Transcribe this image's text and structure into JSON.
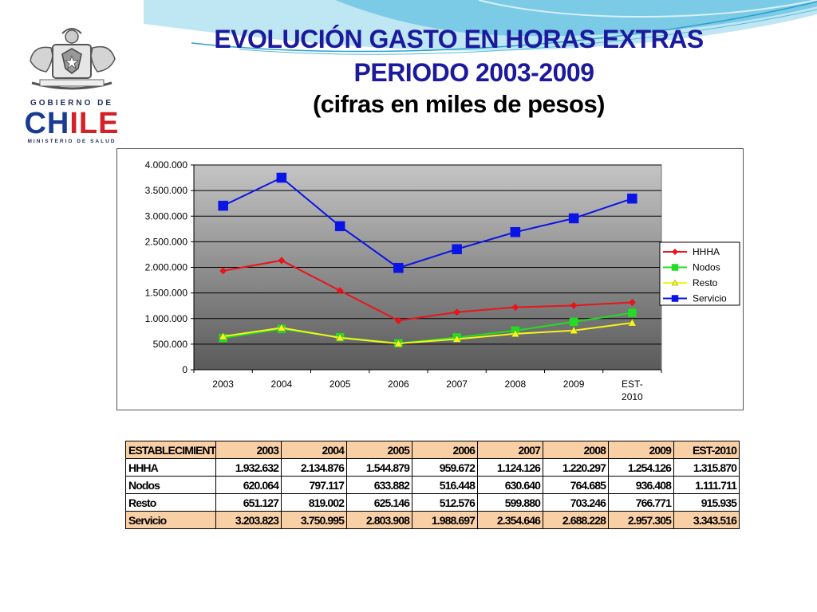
{
  "header": {
    "title_line1": "EVOLUCIÓN GASTO EN HORAS EXTRAS",
    "title_line2": "PERIODO 2003-2009",
    "title_line3": "(cifras en miles de pesos)"
  },
  "logo": {
    "top_text": "GOBIERNO DE",
    "chile_part1": "CH",
    "chile_part2": "ILE",
    "bottom_text": "MINISTERIO DE SALUD"
  },
  "chart_data": {
    "type": "line",
    "title": "",
    "xlabel": "",
    "ylabel": "",
    "categories": [
      "2003",
      "2004",
      "2005",
      "2006",
      "2007",
      "2008",
      "2009",
      "EST-2010"
    ],
    "ylim": [
      0,
      4000000
    ],
    "yticks": [
      0,
      500000,
      1000000,
      1500000,
      2000000,
      2500000,
      3000000,
      3500000,
      4000000
    ],
    "ytick_labels": [
      "0",
      "500.000",
      "1.000.000",
      "1.500.000",
      "2.000.000",
      "2.500.000",
      "3.000.000",
      "3.500.000",
      "4.000.000"
    ],
    "grid": true,
    "legend_position": "right",
    "series": [
      {
        "name": "HHHA",
        "color": "#e8141b",
        "marker": "diamond",
        "values": [
          1932632,
          2134876,
          1544879,
          959672,
          1124126,
          1220297,
          1254126,
          1315870
        ]
      },
      {
        "name": "Nodos",
        "color": "#22dd22",
        "marker": "square",
        "values": [
          620064,
          797117,
          633882,
          516448,
          630640,
          764685,
          936408,
          1111711
        ]
      },
      {
        "name": "Resto",
        "color": "#f5f51a",
        "marker": "triangle",
        "values": [
          651127,
          819002,
          625146,
          512576,
          599880,
          703246,
          766771,
          915935
        ]
      },
      {
        "name": "Servicio",
        "color": "#0a14e6",
        "marker": "square",
        "values": [
          3203823,
          3750995,
          2803908,
          1988697,
          2354646,
          2688228,
          2957305,
          3343516
        ]
      }
    ]
  },
  "table": {
    "header": [
      "ESTABLECIMIENTO",
      "2003",
      "2004",
      "2005",
      "2006",
      "2007",
      "2008",
      "2009",
      "EST-2010"
    ],
    "rows": [
      [
        "HHHA",
        "1.932.632",
        "2.134.876",
        "1.544.879",
        "959.672",
        "1.124.126",
        "1.220.297",
        "1.254.126",
        "1.315.870"
      ],
      [
        "Nodos",
        "620.064",
        "797.117",
        "633.882",
        "516.448",
        "630.640",
        "764.685",
        "936.408",
        "1.111.711"
      ],
      [
        "Resto",
        "651.127",
        "819.002",
        "625.146",
        "512.576",
        "599.880",
        "703.246",
        "766.771",
        "915.935"
      ],
      [
        "Servicio",
        "3.203.823",
        "3.750.995",
        "2.803.908",
        "1.988.697",
        "2.354.646",
        "2.688.228",
        "2.957.305",
        "3.343.516"
      ]
    ]
  }
}
